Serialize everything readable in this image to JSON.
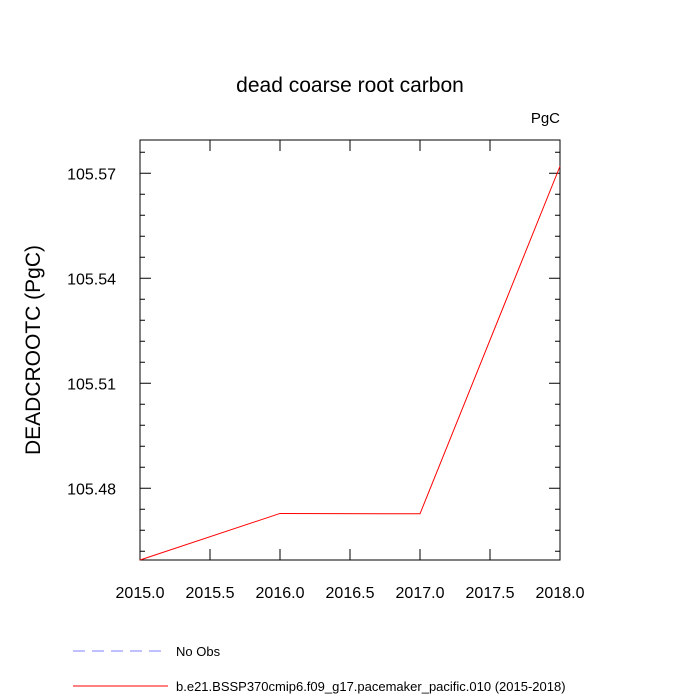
{
  "chart_data": {
    "type": "line",
    "title": "dead coarse root carbon",
    "units": "PgC",
    "xlabel": "",
    "ylabel": "DEADCROOTC  (PgC)",
    "xlim": [
      2015.0,
      2018.0
    ],
    "ylim": [
      105.4595,
      105.5795
    ],
    "x_ticks": [
      2015.0,
      2015.5,
      2016.0,
      2016.5,
      2017.0,
      2017.5,
      2018.0
    ],
    "x_tick_labels": [
      "2015.0",
      "2015.5",
      "2016.0",
      "2016.5",
      "2017.0",
      "2017.5",
      "2018.0"
    ],
    "y_ticks": [
      105.48,
      105.51,
      105.54,
      105.57
    ],
    "y_tick_labels": [
      "105.48",
      "105.51",
      "105.54",
      "105.57"
    ],
    "series": [
      {
        "name": "b.e21.BSSP370cmip6.f09_g17.pacemaker_pacific.010 (2015-2018)",
        "color": "#ff0000",
        "style": "solid",
        "x": [
          2015.0,
          2016.0,
          2017.0,
          2018.0
        ],
        "y": [
          105.4595,
          105.4728,
          105.4727,
          105.572
        ]
      },
      {
        "name": "No Obs",
        "color": "#8080ff",
        "style": "dashed",
        "x": [],
        "y": []
      }
    ],
    "legend_position": "bottom",
    "grid": false
  }
}
